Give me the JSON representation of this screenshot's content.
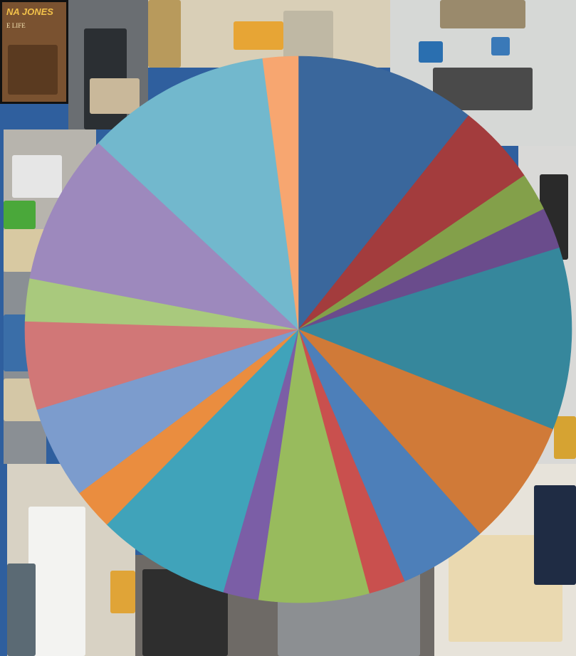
{
  "background": {
    "frame_color": "#2f5f9e",
    "poster_text": "NA JONES",
    "poster_subtext": "E LIFE"
  },
  "chart_data": {
    "type": "pie",
    "title": "",
    "start_angle_deg": 0,
    "direction": "clockwise",
    "slices": [
      {
        "value": 12.3,
        "color": "#3a679c"
      },
      {
        "value": 5.5,
        "color": "#a33c3d"
      },
      {
        "value": 2.6,
        "color": "#83a04a"
      },
      {
        "value": 2.8,
        "color": "#6a4c8c"
      },
      {
        "value": 12.4,
        "color": "#36879c"
      },
      {
        "value": 8.6,
        "color": "#d07a38"
      },
      {
        "value": 6.0,
        "color": "#4d7fb9"
      },
      {
        "value": 2.5,
        "color": "#c9504e"
      },
      {
        "value": 7.5,
        "color": "#98bb5d"
      },
      {
        "value": 2.4,
        "color": "#7b5ea6"
      },
      {
        "value": 9.1,
        "color": "#40a3ba"
      },
      {
        "value": 2.8,
        "color": "#ea8d3f"
      },
      {
        "value": 6.3,
        "color": "#7c9ccd"
      },
      {
        "value": 6.0,
        "color": "#d17777"
      },
      {
        "value": 2.9,
        "color": "#a9c97d"
      },
      {
        "value": 10.3,
        "color": "#9d89bd"
      },
      {
        "value": 12.6,
        "color": "#72b8cd"
      },
      {
        "value": 2.4,
        "color": "#f7a670"
      }
    ]
  }
}
